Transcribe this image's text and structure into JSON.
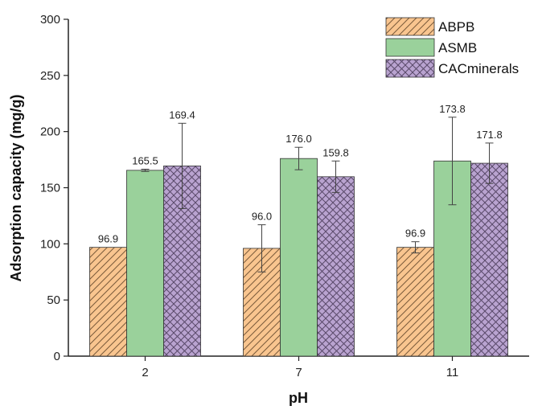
{
  "chart_data": {
    "type": "bar",
    "title": "",
    "xlabel": "pH",
    "ylabel": "Adsorption capacity (mg/g)",
    "categories": [
      "2",
      "7",
      "11"
    ],
    "ylim": [
      0,
      300
    ],
    "yticks": [
      0,
      50,
      100,
      150,
      200,
      250,
      300
    ],
    "grid": false,
    "legend_position": "top-right",
    "series": [
      {
        "name": "ABPB",
        "values": [
          96.9,
          96.0,
          96.9
        ],
        "labels": [
          "96.9",
          "96.0",
          "96.9"
        ],
        "error": [
          0,
          21,
          5
        ],
        "color": "#F9C58F",
        "pattern": "diagonal-hatch"
      },
      {
        "name": "ASMB",
        "values": [
          165.5,
          176.0,
          173.8
        ],
        "labels": [
          "165.5",
          "176.0",
          "173.8"
        ],
        "error": [
          1,
          10,
          39
        ],
        "color": "#9AD19B",
        "pattern": "solid"
      },
      {
        "name": "CACminerals",
        "values": [
          169.4,
          159.8,
          171.8
        ],
        "labels": [
          "169.4",
          "159.8",
          "171.8"
        ],
        "error": [
          38,
          14,
          18
        ],
        "color": "#B9A3D0",
        "pattern": "crosshatch"
      }
    ]
  }
}
